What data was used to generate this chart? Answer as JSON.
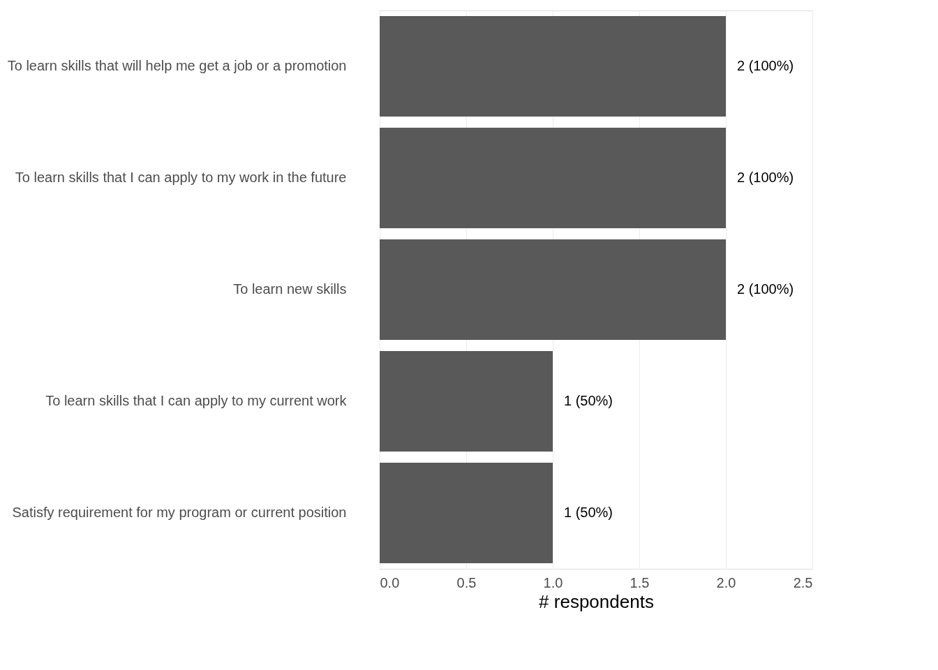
{
  "chart_data": {
    "type": "bar",
    "orientation": "horizontal",
    "xlabel": "# respondents",
    "categories": [
      "To learn skills that will help me get a job or a promotion",
      "To learn skills that I can apply to my work in the future",
      "To learn new skills",
      "To learn skills that I can apply to my current work",
      "Satisfy requirement for my program or current position"
    ],
    "values": [
      2,
      2,
      2,
      1,
      1
    ],
    "value_labels": [
      "2 (100%)",
      "2 (100%)",
      "2 (100%)",
      "1 (50%)",
      "1 (50%)"
    ],
    "color": "#595959",
    "xlim": [
      0,
      2.5
    ],
    "xticks": [
      {
        "value": 0,
        "label": "0.0"
      },
      0.5,
      {
        "value": 1,
        "label": "1.0"
      },
      1.5,
      {
        "value": 2,
        "label": "2.0"
      },
      2.5
    ],
    "grid": "x"
  }
}
